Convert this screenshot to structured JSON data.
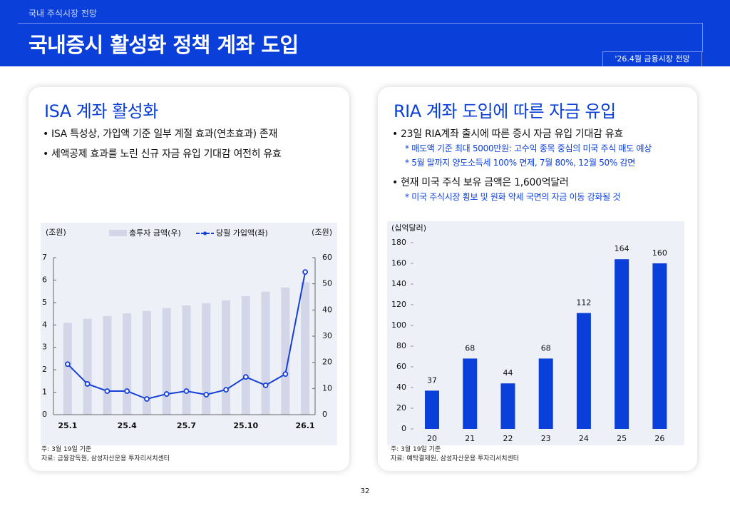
{
  "header": {
    "section": "국내 주식시장 전망",
    "title": "국내증시 활성화 정책 계좌 도입",
    "badge": "'26.4월 금융시장 전망"
  },
  "panels": [
    {
      "title": "ISA 계좌 활성화",
      "bullets": [
        {
          "text": "ISA 특성상, 가입액 기준 일부 계절 효과(연초효과) 존재",
          "sub": []
        },
        {
          "text": "세액공제 효과를 노린 신규 자금 유입 기대감 여전히 유효",
          "sub": []
        }
      ],
      "notes": [
        "주: 3월 19일 기준",
        "자료: 금융감독원, 삼성자산운용 투자리서치센터"
      ]
    },
    {
      "title": "RIA 계좌 도입에 따른 자금 유입",
      "bullets": [
        {
          "text": "23일 RIA계좌 출시에 따른 증시 자금 유입 기대감 유효",
          "sub": [
            "* 매도액 기준 최대 5000만원: 고수익 종목 중심의 미국 주식 매도 예상",
            "* 5월 말까지 양도소득세 100% 면제, 7월 80%, 12월 50% 감면"
          ]
        },
        {
          "text": "현재 미국 주식 보유 금액은 1,600억달러",
          "sub": [
            "* 미국 주식시장 횡보 및 원화 약세 국면의 자금 이동 강화될 것"
          ]
        }
      ],
      "notes": [
        "주: 3월 19일 기준",
        "자료: 예탁결제원, 삼성자산운용 투자리서치센터"
      ]
    }
  ],
  "chart_data": [
    {
      "type": "combo",
      "ylabel": "(조원)",
      "y2label": "(조원)",
      "categories": [
        "25.1",
        null,
        null,
        "25.4",
        null,
        null,
        "25.7",
        null,
        null,
        "25.10",
        null,
        null,
        "26.1"
      ],
      "series": [
        {
          "name": "총투자 금액(우)",
          "type": "bar",
          "axis": "y2",
          "color": "#d3d6e7",
          "values": [
            35.1,
            36.6,
            37.7,
            38.7,
            39.6,
            40.7,
            41.7,
            42.6,
            43.7,
            45.3,
            47.0,
            48.6,
            50.6
          ]
        },
        {
          "name": "당월 가입액(좌)",
          "type": "line",
          "color": "#1440d8",
          "values": [
            2.25,
            1.37,
            1.05,
            1.05,
            0.7,
            0.92,
            1.05,
            0.89,
            1.11,
            1.68,
            1.31,
            1.81,
            6.36
          ]
        }
      ],
      "ylim": [
        0,
        7
      ],
      "yticks": [
        0,
        1,
        2,
        3,
        4,
        5,
        6,
        7
      ],
      "y2lim": [
        0,
        60
      ],
      "y2ticks": [
        0,
        10,
        20,
        30,
        40,
        50,
        60
      ]
    },
    {
      "type": "bar",
      "ylabel": "(십억달러)",
      "categories": [
        "20",
        "21",
        "22",
        "23",
        "24",
        "25",
        "26"
      ],
      "values": [
        37,
        68,
        44,
        68,
        112,
        164,
        160
      ],
      "color": "#0b3fd9",
      "ylim": [
        0,
        180
      ],
      "yticks": [
        0,
        20,
        40,
        60,
        80,
        100,
        120,
        140,
        160,
        180
      ]
    }
  ],
  "page_number": "32"
}
